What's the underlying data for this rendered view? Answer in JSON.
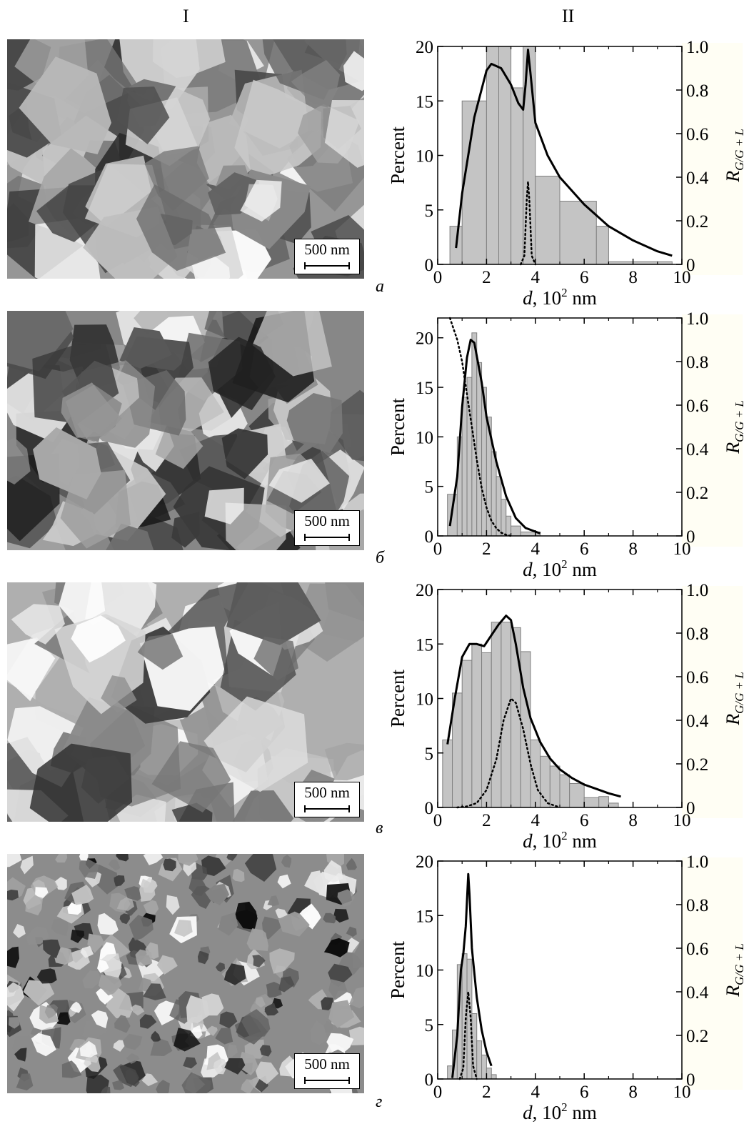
{
  "columns": {
    "left": "I",
    "right": "II"
  },
  "scale_bar_label": "500 nm",
  "axis_text": {
    "ylabel_left": "Percent",
    "ylabel_right_main": "R",
    "ylabel_right_sub": "G/G + L",
    "xlabel_d": "d",
    "xlabel_rest": ", 10",
    "xlabel_sup": "2",
    "xlabel_unit": " nm"
  },
  "panels": [
    {
      "letter": "а"
    },
    {
      "letter": "б"
    },
    {
      "letter": "в"
    },
    {
      "letter": "г"
    }
  ],
  "colors": {
    "bar_fill": "#c4c4c4",
    "bar_edge": "#808080",
    "line": "#000000"
  },
  "chart_data": [
    {
      "type": "bar",
      "xlim": [
        0,
        10
      ],
      "ylim_left": [
        0,
        20
      ],
      "ylim_right": [
        0,
        1.0
      ],
      "xticks": [
        0,
        2,
        4,
        6,
        8,
        10
      ],
      "yticks_left": [
        0,
        5,
        10,
        15,
        20
      ],
      "yticks_right": [
        "0",
        "0.2",
        "0.4",
        "0.6",
        "0.8",
        "1.0"
      ],
      "bins": [
        [
          0.5,
          1.0,
          3.5
        ],
        [
          1.0,
          2.0,
          15
        ],
        [
          2.0,
          2.5,
          20
        ],
        [
          2.5,
          3.0,
          20
        ],
        [
          3.0,
          3.5,
          16.2
        ],
        [
          3.5,
          4.0,
          20
        ],
        [
          4.0,
          5.0,
          8.1
        ],
        [
          5.0,
          6.5,
          5.8
        ],
        [
          6.5,
          7.0,
          3.5
        ],
        [
          7.0,
          9.6,
          0.25
        ]
      ],
      "solid_curve": [
        [
          0.75,
          1.5
        ],
        [
          1.0,
          6.5
        ],
        [
          1.5,
          13.5
        ],
        [
          2.0,
          17.8
        ],
        [
          2.2,
          18.4
        ],
        [
          2.6,
          18.0
        ],
        [
          3.0,
          16.5
        ],
        [
          3.3,
          14.8
        ],
        [
          3.5,
          14.2
        ],
        [
          3.6,
          16.5
        ],
        [
          3.7,
          19.7
        ],
        [
          3.8,
          17.5
        ],
        [
          4.0,
          13.0
        ],
        [
          4.5,
          10.0
        ],
        [
          5.0,
          8.0
        ],
        [
          6.0,
          5.5
        ],
        [
          7.0,
          3.5
        ],
        [
          8.0,
          2.2
        ],
        [
          9.0,
          1.2
        ],
        [
          9.6,
          0.8
        ]
      ],
      "dotted_curve": [
        [
          3.4,
          0
        ],
        [
          3.55,
          0.04
        ],
        [
          3.65,
          0.3
        ],
        [
          3.7,
          0.38
        ],
        [
          3.75,
          0.3
        ],
        [
          3.85,
          0.04
        ],
        [
          4.0,
          0
        ]
      ]
    },
    {
      "type": "bar",
      "xlim": [
        0,
        10
      ],
      "ylim_left": [
        0,
        22
      ],
      "ylim_right": [
        0,
        1.0
      ],
      "xticks": [
        0,
        2,
        4,
        6,
        8,
        10
      ],
      "yticks_left": [
        0,
        5,
        10,
        15,
        20
      ],
      "yticks_right": [
        "0",
        "0.2",
        "0.4",
        "0.6",
        "0.8",
        "1.0"
      ],
      "bins": [
        [
          0.4,
          0.8,
          4.2
        ],
        [
          0.8,
          1.0,
          10
        ],
        [
          1.0,
          1.2,
          14
        ],
        [
          1.2,
          1.4,
          16
        ],
        [
          1.4,
          1.6,
          20.5
        ],
        [
          1.6,
          1.8,
          17.5
        ],
        [
          1.8,
          2.0,
          15
        ],
        [
          2.0,
          2.2,
          12
        ],
        [
          2.2,
          2.4,
          8.5
        ],
        [
          2.4,
          2.6,
          6
        ],
        [
          2.6,
          2.8,
          3.7
        ],
        [
          2.8,
          3.0,
          2
        ],
        [
          3.0,
          3.4,
          1
        ],
        [
          3.4,
          4.2,
          0.4
        ]
      ],
      "solid_curve": [
        [
          0.5,
          1.0
        ],
        [
          0.8,
          6.0
        ],
        [
          1.0,
          13.0
        ],
        [
          1.2,
          18.0
        ],
        [
          1.35,
          19.8
        ],
        [
          1.5,
          19.5
        ],
        [
          1.8,
          15.5
        ],
        [
          2.0,
          12.0
        ],
        [
          2.4,
          7.5
        ],
        [
          2.8,
          4.0
        ],
        [
          3.2,
          1.8
        ],
        [
          3.6,
          0.8
        ],
        [
          4.2,
          0.25
        ]
      ],
      "dotted_curve": [
        [
          0.5,
          1.0
        ],
        [
          0.8,
          0.9
        ],
        [
          1.0,
          0.8
        ],
        [
          1.2,
          0.65
        ],
        [
          1.4,
          0.5
        ],
        [
          1.6,
          0.35
        ],
        [
          1.8,
          0.22
        ],
        [
          2.0,
          0.13
        ],
        [
          2.2,
          0.07
        ],
        [
          2.4,
          0.035
        ],
        [
          2.6,
          0.015
        ],
        [
          2.8,
          0.005
        ],
        [
          3.0,
          0
        ]
      ]
    },
    {
      "type": "bar",
      "xlim": [
        0,
        10
      ],
      "ylim_left": [
        0,
        20
      ],
      "ylim_right": [
        0,
        1.0
      ],
      "xticks": [
        0,
        2,
        4,
        6,
        8,
        10
      ],
      "yticks_left": [
        0,
        5,
        10,
        15,
        20
      ],
      "yticks_right": [
        "0",
        "0.2",
        "0.4",
        "0.6",
        "0.8",
        "1.0"
      ],
      "bins": [
        [
          0.2,
          0.6,
          6.2
        ],
        [
          0.6,
          1.0,
          10.5
        ],
        [
          1.0,
          1.4,
          13.5
        ],
        [
          1.4,
          1.8,
          15
        ],
        [
          1.8,
          2.2,
          14.2
        ],
        [
          2.2,
          2.6,
          17
        ],
        [
          2.6,
          3.0,
          17
        ],
        [
          3.0,
          3.4,
          16.5
        ],
        [
          3.4,
          3.8,
          14.3
        ],
        [
          3.8,
          4.2,
          6.2
        ],
        [
          4.2,
          4.6,
          4.7
        ],
        [
          4.6,
          5.0,
          3.8
        ],
        [
          5.0,
          5.4,
          3.0
        ],
        [
          5.4,
          6.0,
          2.2
        ],
        [
          6.0,
          6.6,
          0.9
        ],
        [
          6.6,
          7.0,
          1.0
        ],
        [
          7.0,
          7.4,
          0.4
        ]
      ],
      "solid_curve": [
        [
          0.4,
          5.8
        ],
        [
          0.7,
          10.0
        ],
        [
          1.0,
          13.8
        ],
        [
          1.3,
          15.0
        ],
        [
          1.6,
          15.0
        ],
        [
          1.9,
          14.8
        ],
        [
          2.2,
          15.8
        ],
        [
          2.5,
          16.8
        ],
        [
          2.8,
          17.6
        ],
        [
          3.0,
          17.2
        ],
        [
          3.2,
          15.0
        ],
        [
          3.5,
          11.0
        ],
        [
          3.8,
          8.2
        ],
        [
          4.2,
          6.0
        ],
        [
          4.6,
          4.5
        ],
        [
          5.0,
          3.5
        ],
        [
          5.5,
          2.7
        ],
        [
          6.0,
          2.1
        ],
        [
          6.5,
          1.7
        ],
        [
          7.0,
          1.3
        ],
        [
          7.5,
          1.0
        ]
      ],
      "dotted_curve": [
        [
          0.8,
          0
        ],
        [
          1.2,
          0.005
        ],
        [
          1.6,
          0.02
        ],
        [
          2.0,
          0.08
        ],
        [
          2.4,
          0.22
        ],
        [
          2.7,
          0.4
        ],
        [
          3.0,
          0.5
        ],
        [
          3.2,
          0.48
        ],
        [
          3.5,
          0.36
        ],
        [
          3.8,
          0.2
        ],
        [
          4.1,
          0.08
        ],
        [
          4.5,
          0.02
        ],
        [
          5.0,
          0
        ]
      ]
    },
    {
      "type": "bar",
      "xlim": [
        0,
        10
      ],
      "ylim_left": [
        0,
        20
      ],
      "ylim_right": [
        0,
        1.0
      ],
      "xticks": [
        0,
        2,
        4,
        6,
        8,
        10
      ],
      "yticks_left": [
        0,
        5,
        10,
        15,
        20
      ],
      "yticks_right": [
        "0",
        "0.2",
        "0.4",
        "0.6",
        "0.8",
        "1.0"
      ],
      "bins": [
        [
          0.4,
          0.6,
          1.2
        ],
        [
          0.6,
          0.8,
          4.5
        ],
        [
          0.8,
          1.0,
          10.5
        ],
        [
          1.0,
          1.2,
          11.5
        ],
        [
          1.2,
          1.4,
          11
        ],
        [
          1.4,
          1.6,
          6
        ],
        [
          1.6,
          1.8,
          3.5
        ],
        [
          1.8,
          2.0,
          2.2
        ],
        [
          2.0,
          2.2,
          1
        ],
        [
          2.2,
          2.4,
          0.4
        ]
      ],
      "solid_curve": [
        [
          0.6,
          0.1
        ],
        [
          0.8,
          4.0
        ],
        [
          0.95,
          10.0
        ],
        [
          1.05,
          11.5
        ],
        [
          1.15,
          14.0
        ],
        [
          1.25,
          18.8
        ],
        [
          1.3,
          17.0
        ],
        [
          1.4,
          12.0
        ],
        [
          1.6,
          7.5
        ],
        [
          1.8,
          4.5
        ],
        [
          2.0,
          2.5
        ],
        [
          2.2,
          1.2
        ]
      ],
      "dotted_curve": [
        [
          0.9,
          0
        ],
        [
          1.05,
          0.05
        ],
        [
          1.15,
          0.28
        ],
        [
          1.25,
          0.4
        ],
        [
          1.35,
          0.28
        ],
        [
          1.45,
          0.06
        ],
        [
          1.6,
          0
        ]
      ]
    }
  ]
}
